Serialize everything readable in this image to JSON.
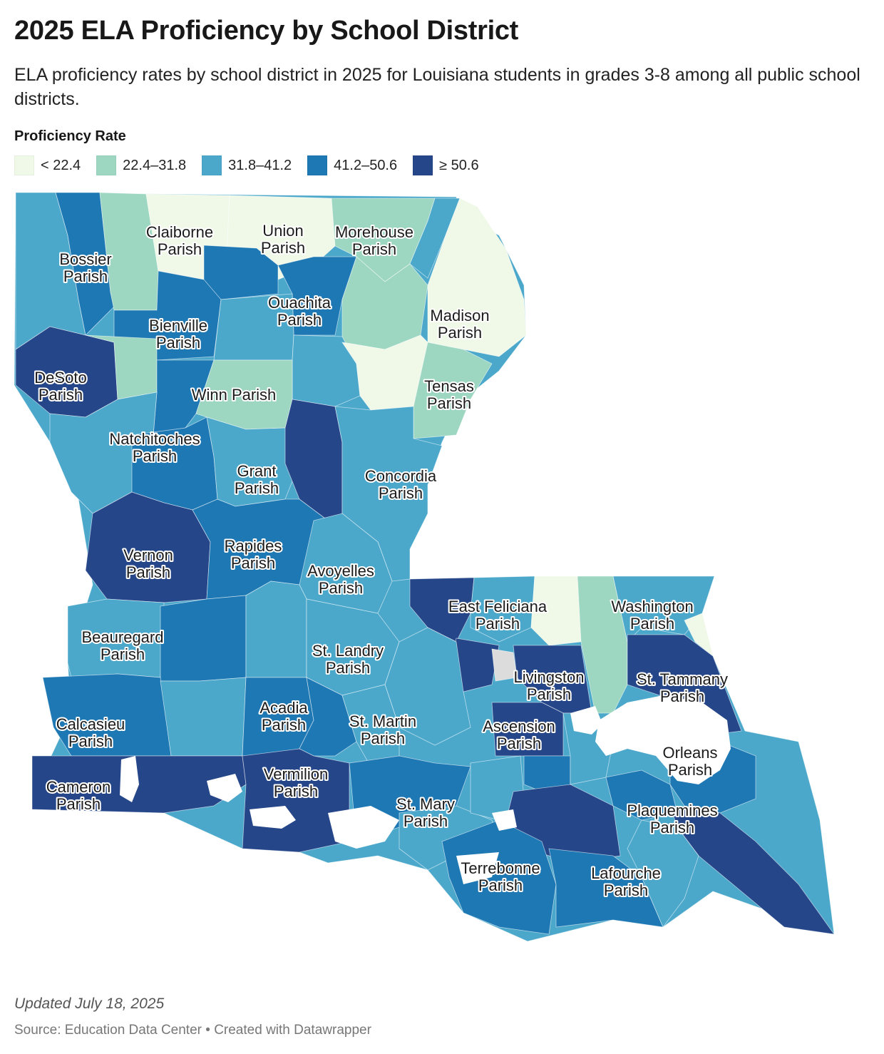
{
  "header": {
    "title": "2025 ELA Proficiency by School District",
    "subtitle": "ELA proficiency rates by school district in 2025 for Louisiana students in grades 3-8 among all public school districts."
  },
  "legend": {
    "title": "Proficiency Rate",
    "bins": [
      {
        "label": "< 22.4",
        "color": "#f0f9e8"
      },
      {
        "label": "22.4–31.8",
        "color": "#9dd7c1"
      },
      {
        "label": "31.8–41.2",
        "color": "#4ba8cb"
      },
      {
        "label": "41.2–50.6",
        "color": "#1e78b4"
      },
      {
        "label": "≥ 50.6",
        "color": "#26468a"
      }
    ]
  },
  "map": {
    "parish_labels": [
      "Claiborne Parish",
      "Union Parish",
      "Morehouse Parish",
      "Bossier Parish",
      "Ouachita Parish",
      "Madison Parish",
      "Bienville Parish",
      "DeSoto Parish",
      "Tensas Parish",
      "Winn Parish",
      "Natchitoches Parish",
      "Grant Parish",
      "Concordia Parish",
      "Vernon Parish",
      "Rapides Parish",
      "Avoyelles Parish",
      "East Feliciana Parish",
      "Washington Parish",
      "Beauregard Parish",
      "St. Landry Parish",
      "Livingston Parish",
      "St. Tammany Parish",
      "Acadia Parish",
      "Calcasieu Parish",
      "St. Martin Parish",
      "Ascension Parish",
      "Orleans Parish",
      "Cameron Parish",
      "Vermilion Parish",
      "St. Mary Parish",
      "Plaquemines Parish",
      "Terrebonne Parish",
      "Lafourche Parish"
    ]
  },
  "footer": {
    "updated": "Updated July 18, 2025",
    "source": "Source: Education Data Center • Created with Datawrapper"
  }
}
